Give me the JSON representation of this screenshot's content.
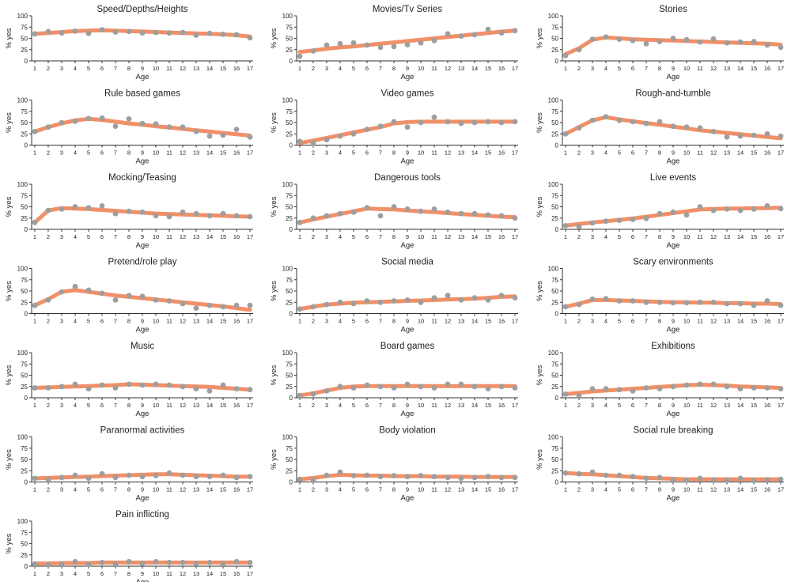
{
  "figure": {
    "xlabel": "Age",
    "ylabel": "% yes",
    "x_ticks": [
      "1",
      "2",
      "3",
      "4",
      "5",
      "6",
      "7",
      "8",
      "9",
      "10",
      "11",
      "12",
      "13",
      "14",
      "15",
      "16",
      "17"
    ],
    "y_ticks": [
      "0",
      "25",
      "50",
      "75",
      "100"
    ],
    "colors": {
      "line": "#F08A60",
      "points": "#9E9E9E",
      "axis": "#333333"
    }
  },
  "chart_data": [
    {
      "type": "line",
      "title": "Speed/Depths/Heights",
      "ylim": [
        0,
        100
      ],
      "x": [
        1,
        2,
        3,
        4,
        5,
        6,
        7,
        8,
        9,
        10,
        11,
        12,
        13,
        14,
        15,
        16,
        17
      ],
      "trend": [
        60,
        62,
        64,
        66,
        67,
        68,
        67,
        66,
        65,
        64,
        63,
        62,
        61,
        60,
        59,
        57,
        54
      ],
      "observed": [
        60,
        65,
        62,
        66,
        61,
        69,
        64,
        65,
        62,
        63,
        62,
        63,
        57,
        61,
        59,
        58,
        51
      ]
    },
    {
      "type": "line",
      "title": "Movies/Tv Series",
      "ylim": [
        0,
        100
      ],
      "x": [
        1,
        2,
        3,
        4,
        5,
        6,
        7,
        8,
        9,
        10,
        11,
        12,
        13,
        14,
        15,
        16,
        17
      ],
      "trend": [
        20,
        23,
        27,
        30,
        32,
        35,
        38,
        41,
        44,
        47,
        50,
        53,
        56,
        59,
        62,
        65,
        67
      ],
      "observed": [
        10,
        22,
        35,
        38,
        40,
        35,
        30,
        32,
        36,
        40,
        45,
        60,
        55,
        58,
        70,
        62,
        67
      ]
    },
    {
      "type": "line",
      "title": "Stories",
      "ylim": [
        0,
        100
      ],
      "x": [
        1,
        2,
        3,
        4,
        5,
        6,
        7,
        8,
        9,
        10,
        11,
        12,
        13,
        14,
        15,
        16,
        17
      ],
      "trend": [
        15,
        28,
        47,
        52,
        50,
        48,
        47,
        46,
        45,
        44,
        43,
        42,
        41,
        40,
        39,
        38,
        36
      ],
      "observed": [
        12,
        25,
        48,
        53,
        48,
        45,
        38,
        43,
        50,
        47,
        42,
        49,
        40,
        42,
        43,
        35,
        30
      ]
    },
    {
      "type": "line",
      "title": "Rule based games",
      "ylim": [
        0,
        100
      ],
      "x": [
        1,
        2,
        3,
        4,
        5,
        6,
        7,
        8,
        9,
        10,
        11,
        12,
        13,
        14,
        15,
        16,
        17
      ],
      "trend": [
        30,
        40,
        48,
        55,
        58,
        56,
        52,
        48,
        45,
        42,
        39,
        36,
        33,
        30,
        27,
        24,
        21
      ],
      "observed": [
        30,
        40,
        50,
        53,
        59,
        60,
        42,
        58,
        48,
        47,
        40,
        40,
        30,
        20,
        22,
        35,
        18
      ]
    },
    {
      "type": "line",
      "title": "Video games",
      "ylim": [
        0,
        100
      ],
      "x": [
        1,
        2,
        3,
        4,
        5,
        6,
        7,
        8,
        9,
        10,
        11,
        12,
        13,
        14,
        15,
        16,
        17
      ],
      "trend": [
        5,
        10,
        16,
        22,
        28,
        34,
        40,
        48,
        51,
        52,
        52,
        52,
        52,
        52,
        52,
        52,
        52
      ],
      "observed": [
        8,
        5,
        12,
        20,
        25,
        35,
        42,
        52,
        40,
        50,
        62,
        52,
        48,
        50,
        52,
        50,
        52
      ]
    },
    {
      "type": "line",
      "title": "Rough-and-tumble",
      "ylim": [
        0,
        100
      ],
      "x": [
        1,
        2,
        3,
        4,
        5,
        6,
        7,
        8,
        9,
        10,
        11,
        12,
        13,
        14,
        15,
        16,
        17
      ],
      "trend": [
        25,
        40,
        55,
        62,
        57,
        53,
        49,
        45,
        41,
        37,
        33,
        30,
        27,
        24,
        21,
        18,
        15
      ],
      "observed": [
        25,
        38,
        55,
        63,
        55,
        52,
        48,
        52,
        42,
        40,
        38,
        30,
        18,
        20,
        22,
        25,
        20
      ]
    },
    {
      "type": "line",
      "title": "Mocking/Teasing",
      "ylim": [
        0,
        100
      ],
      "x": [
        1,
        2,
        3,
        4,
        5,
        6,
        7,
        8,
        9,
        10,
        11,
        12,
        13,
        14,
        15,
        16,
        17
      ],
      "trend": [
        15,
        42,
        47,
        46,
        45,
        43,
        41,
        39,
        37,
        35,
        34,
        33,
        32,
        31,
        30,
        29,
        28
      ],
      "observed": [
        15,
        42,
        45,
        50,
        48,
        52,
        35,
        40,
        38,
        30,
        28,
        38,
        35,
        30,
        35,
        30,
        28
      ]
    },
    {
      "type": "line",
      "title": "Dangerous tools",
      "ylim": [
        0,
        100
      ],
      "x": [
        1,
        2,
        3,
        4,
        5,
        6,
        7,
        8,
        9,
        10,
        11,
        12,
        13,
        14,
        15,
        16,
        17
      ],
      "trend": [
        15,
        22,
        28,
        34,
        40,
        46,
        45,
        44,
        42,
        40,
        38,
        36,
        34,
        32,
        30,
        28,
        27
      ],
      "observed": [
        15,
        25,
        30,
        35,
        38,
        48,
        30,
        50,
        45,
        40,
        45,
        38,
        35,
        35,
        32,
        30,
        25
      ]
    },
    {
      "type": "line",
      "title": "Live events",
      "ylim": [
        0,
        100
      ],
      "x": [
        1,
        2,
        3,
        4,
        5,
        6,
        7,
        8,
        9,
        10,
        11,
        12,
        13,
        14,
        15,
        16,
        17
      ],
      "trend": [
        8,
        12,
        15,
        18,
        21,
        24,
        28,
        32,
        36,
        40,
        44,
        45,
        46,
        46,
        47,
        47,
        48
      ],
      "observed": [
        8,
        6,
        14,
        18,
        20,
        22,
        24,
        35,
        38,
        32,
        50,
        42,
        45,
        42,
        45,
        52,
        46
      ]
    },
    {
      "type": "line",
      "title": "Pretend/role play",
      "ylim": [
        0,
        100
      ],
      "x": [
        1,
        2,
        3,
        4,
        5,
        6,
        7,
        8,
        9,
        10,
        11,
        12,
        13,
        14,
        15,
        16,
        17
      ],
      "trend": [
        18,
        32,
        48,
        52,
        48,
        44,
        40,
        37,
        34,
        31,
        28,
        25,
        22,
        19,
        16,
        12,
        8
      ],
      "observed": [
        18,
        30,
        48,
        60,
        52,
        45,
        30,
        40,
        38,
        30,
        28,
        22,
        12,
        18,
        15,
        18,
        18
      ]
    },
    {
      "type": "line",
      "title": "Social media",
      "ylim": [
        0,
        100
      ],
      "x": [
        1,
        2,
        3,
        4,
        5,
        6,
        7,
        8,
        9,
        10,
        11,
        12,
        13,
        14,
        15,
        16,
        17
      ],
      "trend": [
        10,
        15,
        20,
        22,
        24,
        25,
        26,
        27,
        28,
        29,
        30,
        31,
        32,
        33,
        35,
        37,
        38
      ],
      "observed": [
        10,
        15,
        20,
        25,
        22,
        28,
        25,
        28,
        30,
        25,
        35,
        40,
        30,
        35,
        30,
        40,
        35
      ]
    },
    {
      "type": "line",
      "title": "Scary environments",
      "ylim": [
        0,
        100
      ],
      "x": [
        1,
        2,
        3,
        4,
        5,
        6,
        7,
        8,
        9,
        10,
        11,
        12,
        13,
        14,
        15,
        16,
        17
      ],
      "trend": [
        15,
        22,
        30,
        30,
        29,
        28,
        27,
        26,
        25,
        25,
        24,
        24,
        23,
        23,
        22,
        22,
        21
      ],
      "observed": [
        15,
        20,
        32,
        33,
        28,
        28,
        25,
        25,
        24,
        24,
        25,
        25,
        22,
        22,
        18,
        28,
        18
      ]
    },
    {
      "type": "line",
      "title": "Music",
      "ylim": [
        0,
        100
      ],
      "x": [
        1,
        2,
        3,
        4,
        5,
        6,
        7,
        8,
        9,
        10,
        11,
        12,
        13,
        14,
        15,
        16,
        17
      ],
      "trend": [
        22,
        23,
        24,
        25,
        26,
        27,
        28,
        30,
        29,
        28,
        27,
        26,
        25,
        24,
        22,
        20,
        18
      ],
      "observed": [
        22,
        22,
        25,
        30,
        20,
        28,
        22,
        30,
        28,
        30,
        28,
        25,
        20,
        15,
        28,
        20,
        18
      ]
    },
    {
      "type": "line",
      "title": "Board games",
      "ylim": [
        0,
        100
      ],
      "x": [
        1,
        2,
        3,
        4,
        5,
        6,
        7,
        8,
        9,
        10,
        11,
        12,
        13,
        14,
        15,
        16,
        17
      ],
      "trend": [
        5,
        10,
        16,
        22,
        25,
        26,
        26,
        26,
        26,
        26,
        26,
        26,
        26,
        26,
        26,
        26,
        26
      ],
      "observed": [
        5,
        8,
        15,
        25,
        22,
        28,
        25,
        22,
        30,
        25,
        22,
        30,
        30,
        25,
        20,
        25,
        22
      ]
    },
    {
      "type": "line",
      "title": "Exhibitions",
      "ylim": [
        0,
        100
      ],
      "x": [
        1,
        2,
        3,
        4,
        5,
        6,
        7,
        8,
        9,
        10,
        11,
        12,
        13,
        14,
        15,
        16,
        17
      ],
      "trend": [
        8,
        11,
        14,
        16,
        18,
        20,
        22,
        24,
        26,
        28,
        29,
        28,
        27,
        25,
        24,
        23,
        22
      ],
      "observed": [
        8,
        5,
        20,
        20,
        18,
        15,
        22,
        20,
        25,
        28,
        30,
        30,
        25,
        20,
        22,
        22,
        20
      ]
    },
    {
      "type": "line",
      "title": "Paranormal activities",
      "ylim": [
        0,
        100
      ],
      "x": [
        1,
        2,
        3,
        4,
        5,
        6,
        7,
        8,
        9,
        10,
        11,
        12,
        13,
        14,
        15,
        16,
        17
      ],
      "trend": [
        8,
        9,
        10,
        11,
        12,
        13,
        14,
        15,
        16,
        17,
        17,
        16,
        15,
        14,
        13,
        12,
        12
      ],
      "observed": [
        8,
        5,
        10,
        15,
        8,
        18,
        10,
        15,
        12,
        14,
        20,
        15,
        12,
        12,
        15,
        10,
        12
      ]
    },
    {
      "type": "line",
      "title": "Body violation",
      "ylim": [
        0,
        100
      ],
      "x": [
        1,
        2,
        3,
        4,
        5,
        6,
        7,
        8,
        9,
        10,
        11,
        12,
        13,
        14,
        15,
        16,
        17
      ],
      "trend": [
        6,
        9,
        13,
        16,
        15,
        14,
        14,
        13,
        13,
        13,
        12,
        12,
        12,
        11,
        11,
        11,
        11
      ],
      "observed": [
        6,
        5,
        15,
        22,
        14,
        15,
        12,
        14,
        12,
        14,
        12,
        10,
        8,
        10,
        12,
        10,
        10
      ]
    },
    {
      "type": "line",
      "title": "Social rule breaking",
      "ylim": [
        0,
        100
      ],
      "x": [
        1,
        2,
        3,
        4,
        5,
        6,
        7,
        8,
        9,
        10,
        11,
        12,
        13,
        14,
        15,
        16,
        17
      ],
      "trend": [
        20,
        18,
        17,
        15,
        13,
        11,
        9,
        8,
        7,
        6,
        6,
        6,
        6,
        6,
        6,
        6,
        6
      ],
      "observed": [
        20,
        18,
        22,
        15,
        15,
        12,
        8,
        10,
        5,
        4,
        8,
        5,
        4,
        8,
        3,
        5,
        6
      ]
    },
    {
      "type": "line",
      "title": "Pain inflicting",
      "ylim": [
        0,
        100
      ],
      "x": [
        1,
        2,
        3,
        4,
        5,
        6,
        7,
        8,
        9,
        10,
        11,
        12,
        13,
        14,
        15,
        16,
        17
      ],
      "trend": [
        6,
        6,
        7,
        7,
        7,
        8,
        8,
        8,
        8,
        8,
        8,
        8,
        8,
        8,
        8,
        8,
        8
      ],
      "observed": [
        5,
        3,
        5,
        10,
        4,
        8,
        5,
        10,
        6,
        10,
        8,
        8,
        6,
        8,
        5,
        10,
        8
      ]
    }
  ]
}
